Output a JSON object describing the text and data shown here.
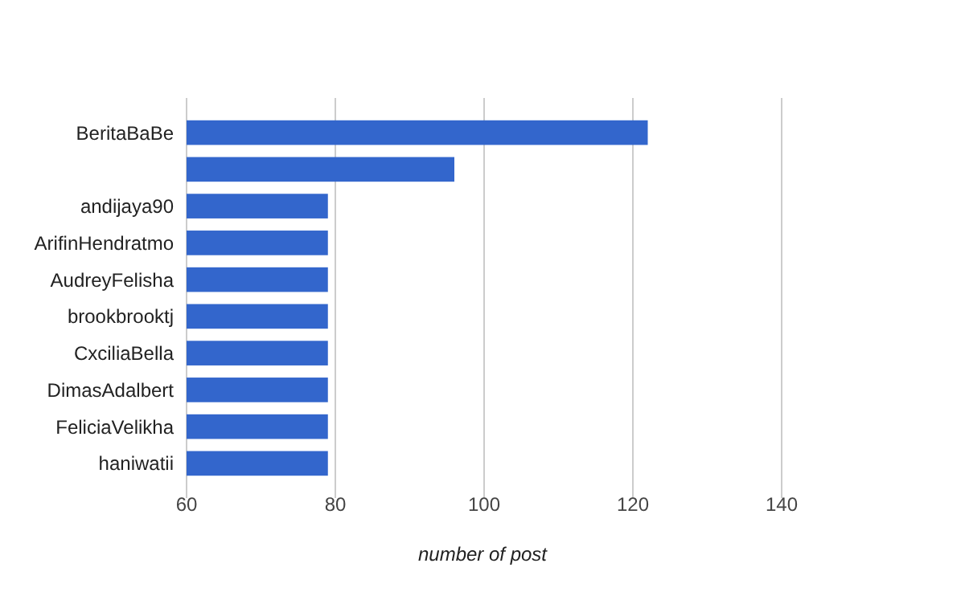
{
  "chart_data": {
    "type": "bar",
    "orientation": "horizontal",
    "categories": [
      "BeritaBaBe",
      null,
      "andijaya90",
      "ArifinHendratmo",
      "AudreyFelisha",
      "brookbrooktj",
      "CxciliaBella",
      "DimasAdalbert",
      "FeliciaVelikha",
      "haniwatii"
    ],
    "values": [
      122,
      96,
      79,
      79,
      79,
      79,
      79,
      79,
      79,
      79
    ],
    "color": "#3366cc",
    "xlim": [
      60,
      140
    ],
    "xticks": [
      60,
      80,
      100,
      120,
      140
    ],
    "xlabel": "number of post",
    "grid": "x"
  }
}
